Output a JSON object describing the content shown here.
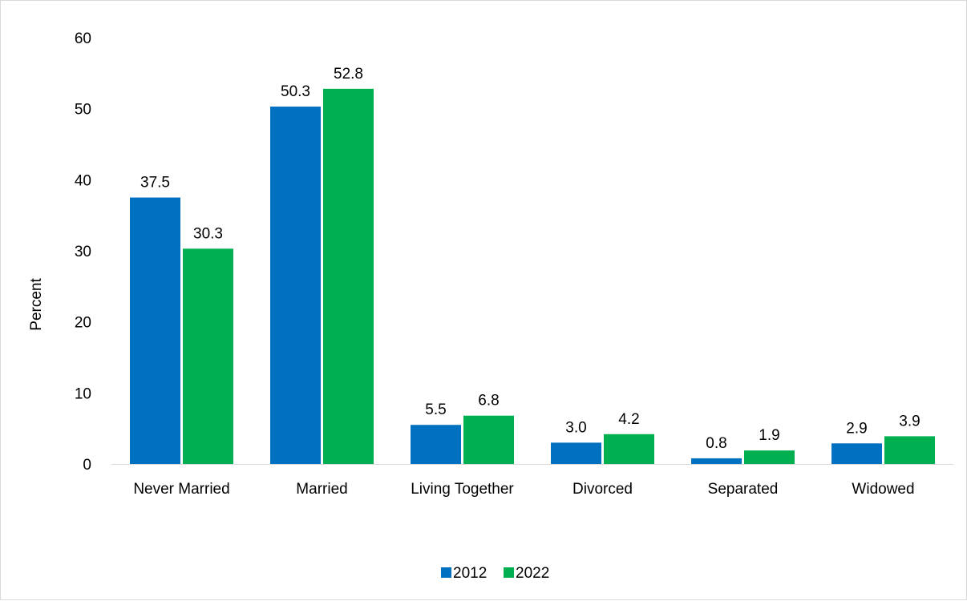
{
  "chart_data": {
    "type": "bar",
    "title": "",
    "xlabel": "",
    "ylabel": "Percent",
    "ylim": [
      0,
      60
    ],
    "yticks": [
      0,
      10,
      20,
      30,
      40,
      50,
      60
    ],
    "categories": [
      "Never Married",
      "Married",
      "Living Together",
      "Divorced",
      "Separated",
      "Widowed"
    ],
    "series": [
      {
        "name": "2012",
        "color": "#0070c0",
        "values": [
          37.5,
          50.3,
          5.5,
          3.0,
          0.8,
          2.9
        ],
        "labels": [
          "37.5",
          "50.3",
          "5.5",
          "3.0",
          "0.8",
          "2.9"
        ]
      },
      {
        "name": "2022",
        "color": "#00b050",
        "values": [
          30.3,
          52.8,
          6.8,
          4.2,
          1.9,
          3.9
        ],
        "labels": [
          "30.3",
          "52.8",
          "6.8",
          "4.2",
          "1.9",
          "3.9"
        ]
      }
    ],
    "grid": false,
    "legend": "bottom-center"
  }
}
